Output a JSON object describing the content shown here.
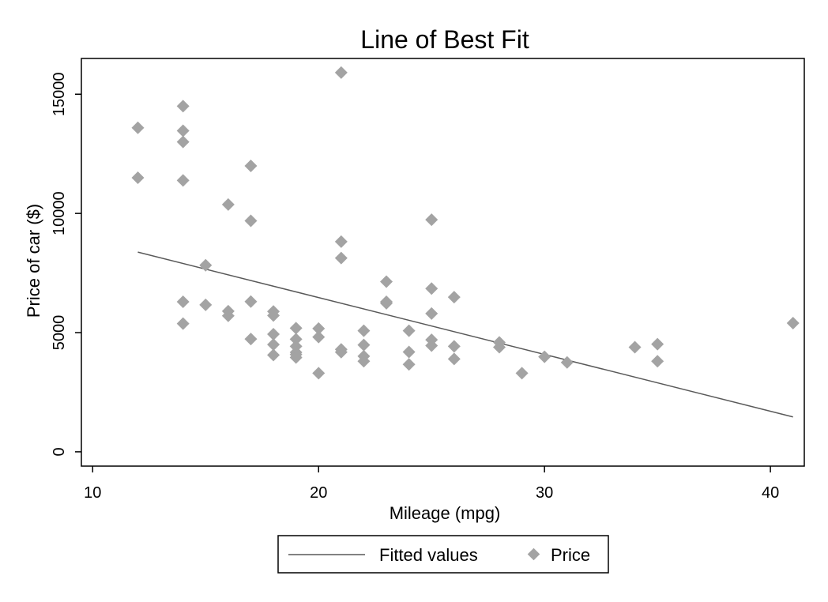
{
  "chart_data": {
    "type": "scatter",
    "title": "Line of Best Fit",
    "xlabel": "Mileage (mpg)",
    "ylabel": "Price of car ($)",
    "xlim": [
      9.5,
      41.5
    ],
    "ylim": [
      -600,
      16500
    ],
    "xticks": [
      10,
      20,
      30,
      40
    ],
    "yticks": [
      0,
      5000,
      10000,
      15000
    ],
    "grid": false,
    "legend_position": "bottom",
    "series": [
      {
        "name": "Fitted values",
        "kind": "line",
        "color": "#595959",
        "x": [
          12,
          41
        ],
        "y": [
          8377,
          1464
        ]
      },
      {
        "name": "Price",
        "kind": "scatter",
        "marker": "diamond",
        "color": "#a3a3a3",
        "points": [
          [
            12,
            13594
          ],
          [
            12,
            11497
          ],
          [
            14,
            14500
          ],
          [
            14,
            13466
          ],
          [
            14,
            13000
          ],
          [
            14,
            11385
          ],
          [
            14,
            6295
          ],
          [
            14,
            5379
          ],
          [
            15,
            7827
          ],
          [
            15,
            6165
          ],
          [
            16,
            10372
          ],
          [
            16,
            5899
          ],
          [
            16,
            5705
          ],
          [
            17,
            11995
          ],
          [
            17,
            9690
          ],
          [
            17,
            6303
          ],
          [
            17,
            4733
          ],
          [
            18,
            5886
          ],
          [
            18,
            5719
          ],
          [
            18,
            4934
          ],
          [
            18,
            4499
          ],
          [
            18,
            4060
          ],
          [
            19,
            5189
          ],
          [
            19,
            4723
          ],
          [
            19,
            4425
          ],
          [
            19,
            4172
          ],
          [
            19,
            4082
          ],
          [
            19,
            3955
          ],
          [
            20,
            5172
          ],
          [
            20,
            4816
          ],
          [
            20,
            3299
          ],
          [
            21,
            15906
          ],
          [
            21,
            8814
          ],
          [
            21,
            8129
          ],
          [
            21,
            4296
          ],
          [
            21,
            4181
          ],
          [
            22,
            5079
          ],
          [
            22,
            4482
          ],
          [
            22,
            4010
          ],
          [
            22,
            3798
          ],
          [
            23,
            7140
          ],
          [
            23,
            6229
          ],
          [
            23,
            6295
          ],
          [
            24,
            5079
          ],
          [
            24,
            4187
          ],
          [
            24,
            3667
          ],
          [
            25,
            9735
          ],
          [
            25,
            6850
          ],
          [
            25,
            5799
          ],
          [
            25,
            4697
          ],
          [
            25,
            4453
          ],
          [
            26,
            6486
          ],
          [
            26,
            4424
          ],
          [
            26,
            3895
          ],
          [
            28,
            4589
          ],
          [
            28,
            4389
          ],
          [
            29,
            3299
          ],
          [
            30,
            3984
          ],
          [
            31,
            3748
          ],
          [
            34,
            4389
          ],
          [
            35,
            4516
          ],
          [
            35,
            3798
          ],
          [
            41,
            5397
          ]
        ]
      }
    ]
  }
}
